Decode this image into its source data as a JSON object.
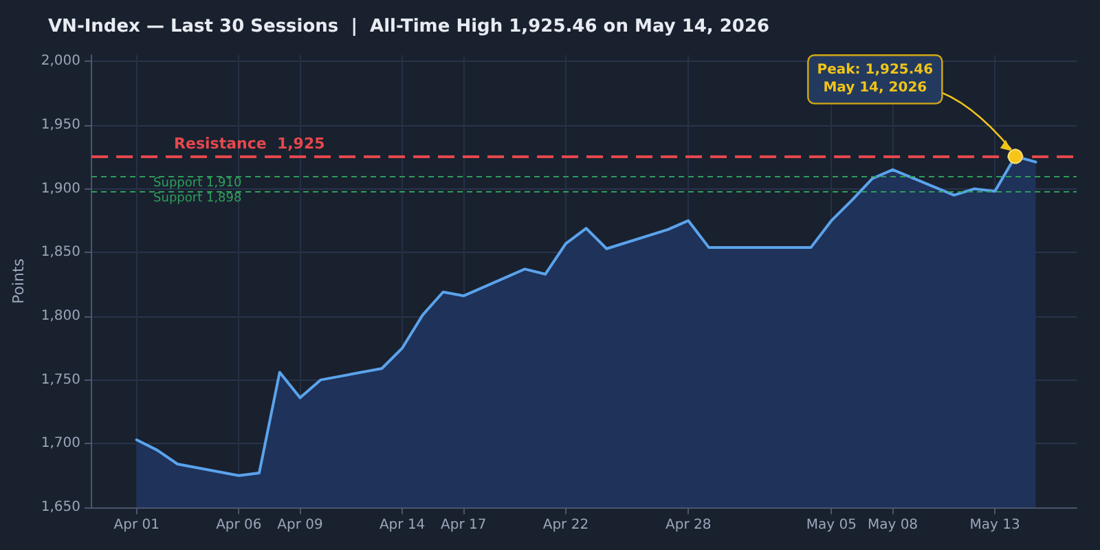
{
  "chart_data": {
    "type": "area",
    "title": "VN-Index — Last 30 Sessions  |  All-Time High 1,925.46 on May 14, 2026",
    "ylabel": "Points",
    "x": [
      "2026-04-01",
      "2026-04-02",
      "2026-04-03",
      "2026-04-06",
      "2026-04-07",
      "2026-04-08",
      "2026-04-09",
      "2026-04-10",
      "2026-04-13",
      "2026-04-14",
      "2026-04-15",
      "2026-04-16",
      "2026-04-17",
      "2026-04-20",
      "2026-04-21",
      "2026-04-22",
      "2026-04-23",
      "2026-04-24",
      "2026-04-27",
      "2026-04-28",
      "2026-04-29",
      "2026-05-04",
      "2026-05-05",
      "2026-05-06",
      "2026-05-07",
      "2026-05-08",
      "2026-05-11",
      "2026-05-12",
      "2026-05-13",
      "2026-05-14",
      "2026-05-15"
    ],
    "series": [
      {
        "color": "#5ba3ec",
        "values": [
          1703,
          1695,
          1684,
          1675,
          1677,
          1756,
          1736,
          1750,
          1759,
          1775,
          1801,
          1819,
          1816,
          1837,
          1833,
          1857,
          1869,
          1853,
          1868,
          1875,
          1854,
          1854,
          1875,
          1891,
          1908,
          1915,
          1895,
          1900,
          1898,
          1925.46,
          1921
        ]
      }
    ],
    "xlim": [
      "2026-03-29T19:00",
      "2026-05-17"
    ],
    "xticks": [
      {
        "value": "2026-04-01",
        "label": "Apr 01"
      },
      {
        "value": "2026-04-06",
        "label": "Apr 06"
      },
      {
        "value": "2026-04-09",
        "label": "Apr 09"
      },
      {
        "value": "2026-04-14",
        "label": "Apr 14"
      },
      {
        "value": "2026-04-17",
        "label": "Apr 17"
      },
      {
        "value": "2026-04-22",
        "label": "Apr 22"
      },
      {
        "value": "2026-04-28",
        "label": "Apr 28"
      },
      {
        "value": "2026-05-05",
        "label": "May 05"
      },
      {
        "value": "2026-05-08",
        "label": "May 08"
      },
      {
        "value": "2026-05-13",
        "label": "May 13"
      }
    ],
    "ylim": [
      1650,
      2005
    ],
    "yticks": [
      {
        "value": 1650,
        "label": "1,650"
      },
      {
        "value": 1700,
        "label": "1,700"
      },
      {
        "value": 1750,
        "label": "1,750"
      },
      {
        "value": 1800,
        "label": "1,800"
      },
      {
        "value": 1850,
        "label": "1,850"
      },
      {
        "value": 1900,
        "label": "1,900"
      },
      {
        "value": 1950,
        "label": "1,950"
      },
      {
        "value": 2000,
        "label": "2,000"
      }
    ],
    "ref_lines": [
      {
        "axis": "y",
        "value": 1925,
        "label": "Resistance  1,925",
        "color": "#e5484d",
        "line_style": "dashed"
      },
      {
        "axis": "y",
        "value": 1910,
        "label": "Support 1,910",
        "color": "#2e9e5a",
        "line_style": "dashed"
      },
      {
        "axis": "y",
        "value": 1898,
        "label": "Support 1,898",
        "color": "#2e9e5a",
        "line_style": "dashed"
      }
    ],
    "annotations": [
      {
        "text": "Peak: 1,925.46\nMay 14, 2026",
        "x": "2026-05-14",
        "y": 1925.46
      }
    ],
    "grid": true,
    "marker": "none",
    "line_style": "solid"
  }
}
